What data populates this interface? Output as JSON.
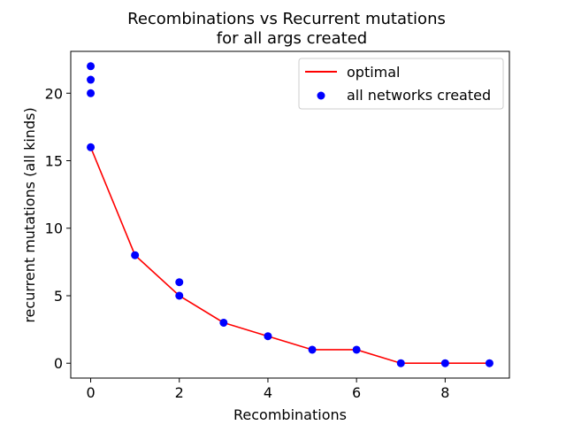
{
  "chart_data": {
    "type": "line+scatter",
    "title": "Recombinations vs Recurrent mutations",
    "subtitle": "for all args created",
    "xlabel": "Recombinations",
    "ylabel": "recurrent mutations (all kinds)",
    "xlim": [
      -0.45,
      9.45
    ],
    "ylim": [
      -1.1,
      23.1
    ],
    "xticks": [
      0,
      2,
      4,
      6,
      8
    ],
    "yticks": [
      0,
      5,
      10,
      15,
      20
    ],
    "grid": false,
    "legend_position": "upper right",
    "series": [
      {
        "name": "optimal",
        "kind": "line",
        "color": "#ff0000",
        "x": [
          0,
          1,
          2,
          3,
          4,
          5,
          6,
          7,
          8,
          9
        ],
        "y": [
          16,
          8,
          5,
          3,
          2,
          1,
          1,
          0,
          0,
          0
        ]
      },
      {
        "name": "all networks created",
        "kind": "scatter",
        "color": "#0000ff",
        "x": [
          0,
          0,
          0,
          0,
          1,
          2,
          2,
          3,
          4,
          5,
          6,
          7,
          8,
          9
        ],
        "y": [
          22,
          21,
          20,
          16,
          8,
          6,
          5,
          3,
          2,
          1,
          1,
          0,
          0,
          0
        ]
      }
    ]
  }
}
